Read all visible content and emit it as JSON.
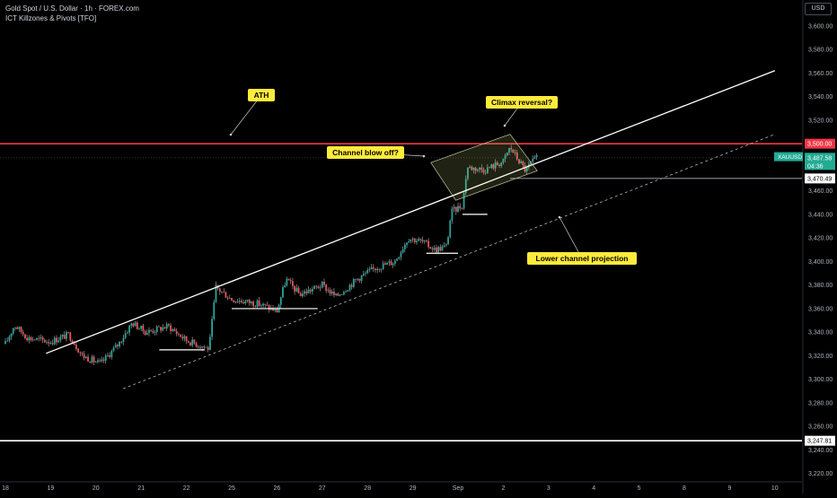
{
  "header": {
    "title": "Gold Spot / U.S. Dollar · 1h · FOREX.com",
    "indicator": "ICT Killzones & Pivots [TFO]",
    "currency_button": "USD"
  },
  "colors": {
    "background": "#000000",
    "up_candle": "#26a69a",
    "down_candle": "#ef5350",
    "wick": "#b2b5be",
    "ath_line": "#f23645",
    "callout_bg": "#ffeb3b",
    "trendline": "#ffffff",
    "axis_text": "#b2b5be",
    "last_price_tag": "#22ab94"
  },
  "annotations": {
    "ath": "ATH",
    "climax": "Climax reversal?",
    "blowoff": "Channel blow off?",
    "lower_proj": "Lower channel projection"
  },
  "price_tags": {
    "ath_price": "3,500.00",
    "symbol": "XAUUSD",
    "last_price": "3,487.58",
    "countdown": "04:36",
    "support_price": "3,470.49",
    "bottom_price": "3,247.81"
  },
  "chart_data": {
    "type": "candlestick",
    "title": "Gold Spot / U.S. Dollar · 1h · FOREX.com",
    "ylim": [
      3203,
      3622
    ],
    "y_ticks": [
      "3,600.00",
      "3,580.00",
      "3,560.00",
      "3,540.00",
      "3,520.00",
      "3,500.00",
      "3,480.00",
      "3,460.00",
      "3,440.00",
      "3,420.00",
      "3,400.00",
      "3,380.00",
      "3,360.00",
      "3,340.00",
      "3,320.00",
      "3,300.00",
      "3,280.00",
      "3,260.00",
      "3,240.00",
      "3,220.00"
    ],
    "x_ticks": [
      "18",
      "19",
      "20",
      "21",
      "22",
      "25",
      "26",
      "27",
      "28",
      "29",
      "Sep",
      "2",
      "3",
      "4",
      "5",
      "8",
      "9",
      "10"
    ],
    "path_anchors": [
      {
        "day": 0.0,
        "price": 3330
      },
      {
        "day": 0.2,
        "price": 3346
      },
      {
        "day": 0.5,
        "price": 3335
      },
      {
        "day": 1.0,
        "price": 3332
      },
      {
        "day": 1.4,
        "price": 3338
      },
      {
        "day": 1.7,
        "price": 3320
      },
      {
        "day": 2.1,
        "price": 3313
      },
      {
        "day": 2.5,
        "price": 3330
      },
      {
        "day": 2.8,
        "price": 3348
      },
      {
        "day": 3.1,
        "price": 3340
      },
      {
        "day": 3.6,
        "price": 3345
      },
      {
        "day": 4.0,
        "price": 3333
      },
      {
        "day": 4.5,
        "price": 3326
      },
      {
        "day": 4.65,
        "price": 3378
      },
      {
        "day": 5.0,
        "price": 3368
      },
      {
        "day": 5.6,
        "price": 3364
      },
      {
        "day": 6.0,
        "price": 3358
      },
      {
        "day": 6.2,
        "price": 3385
      },
      {
        "day": 6.5,
        "price": 3372
      },
      {
        "day": 7.0,
        "price": 3380
      },
      {
        "day": 7.3,
        "price": 3370
      },
      {
        "day": 7.8,
        "price": 3386
      },
      {
        "day": 8.2,
        "price": 3395
      },
      {
        "day": 8.6,
        "price": 3400
      },
      {
        "day": 8.9,
        "price": 3420
      },
      {
        "day": 9.2,
        "price": 3417
      },
      {
        "day": 9.5,
        "price": 3410
      },
      {
        "day": 9.75,
        "price": 3413
      },
      {
        "day": 9.85,
        "price": 3442
      },
      {
        "day": 10.1,
        "price": 3448
      },
      {
        "day": 10.2,
        "price": 3480
      },
      {
        "day": 10.6,
        "price": 3478
      },
      {
        "day": 11.0,
        "price": 3485
      },
      {
        "day": 11.15,
        "price": 3497
      },
      {
        "day": 11.3,
        "price": 3488
      },
      {
        "day": 11.5,
        "price": 3477
      },
      {
        "day": 11.6,
        "price": 3483
      },
      {
        "day": 11.75,
        "price": 3488
      }
    ],
    "horizontal_lines": [
      {
        "price": 3500.0,
        "label": "3,500.00"
      },
      {
        "price": 3470.49,
        "label": "3,470.49"
      },
      {
        "price": 3247.81,
        "label": "3,247.81"
      }
    ],
    "levels": [
      {
        "day_from": 3.4,
        "day_to": 4.4,
        "price": 3325
      },
      {
        "day_from": 5.0,
        "day_to": 6.9,
        "price": 3360
      },
      {
        "day_from": 9.3,
        "day_to": 10.0,
        "price": 3407
      },
      {
        "day_from": 10.1,
        "day_to": 10.65,
        "price": 3440
      }
    ],
    "channel_upper": {
      "day_from": 0.9,
      "price_from": 3322,
      "day_to": 17.0,
      "price_to": 3562
    },
    "channel_lower": {
      "day_from": 2.6,
      "price_from": 3292,
      "day_to": 17.0,
      "price_to": 3508
    },
    "grid": false,
    "legend": "none"
  }
}
